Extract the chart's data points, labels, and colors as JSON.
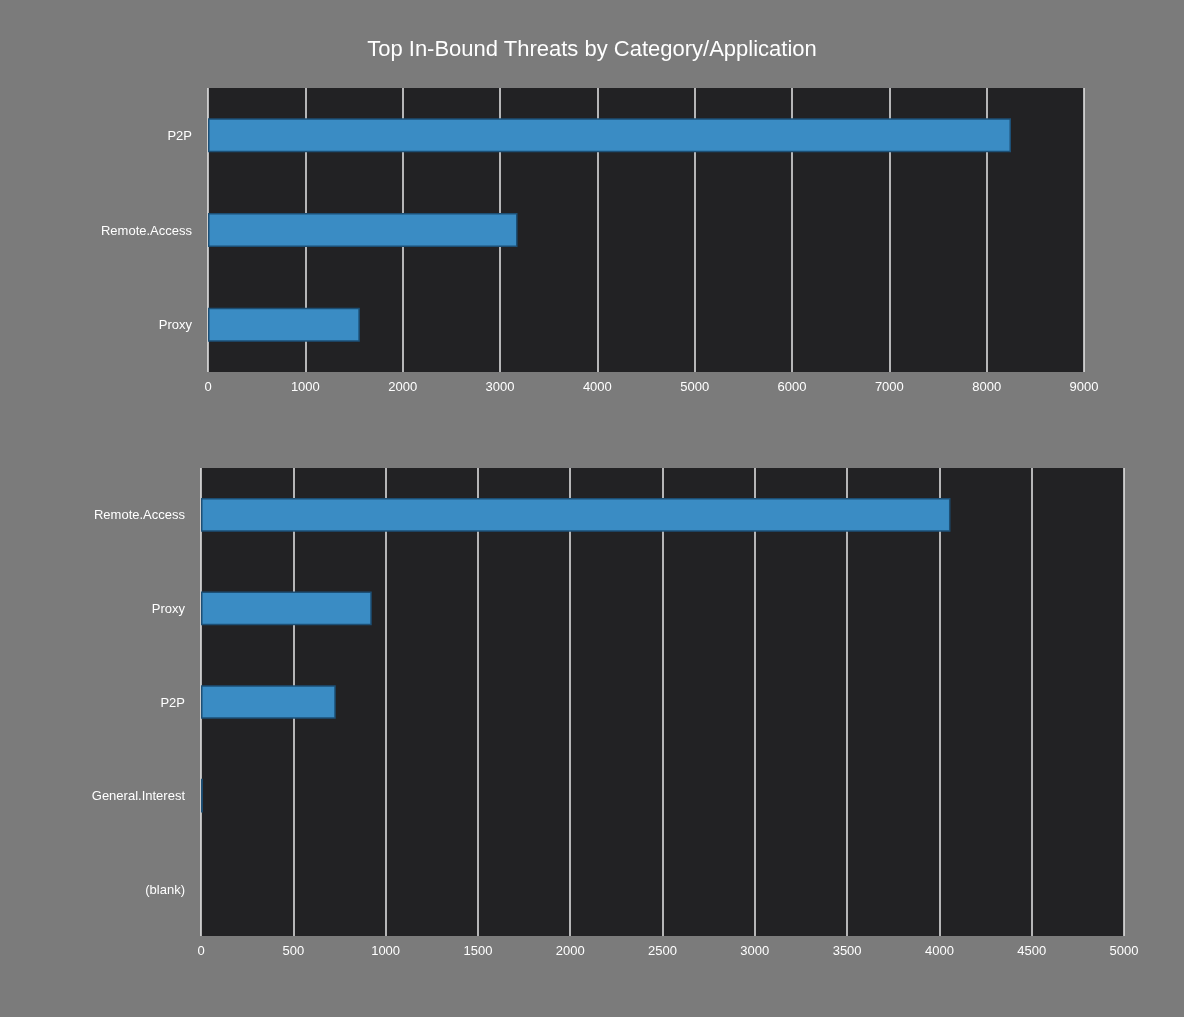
{
  "chart_data": [
    {
      "type": "bar",
      "orientation": "horizontal",
      "title": "Top In-Bound Threats by Category/Application",
      "categories": [
        "P2P",
        "Remote.Access",
        "Proxy"
      ],
      "values": [
        8250,
        3180,
        1560
      ],
      "color": "#3a8cc4",
      "xlim": [
        0,
        9000
      ],
      "xticks": [
        0,
        1000,
        2000,
        3000,
        4000,
        5000,
        6000,
        7000,
        8000,
        9000
      ],
      "grid": "x"
    },
    {
      "type": "bar",
      "orientation": "horizontal",
      "categories": [
        "Remote.Access",
        "Proxy",
        "P2P",
        "General.Interest",
        "(blank)"
      ],
      "values": [
        4060,
        925,
        730,
        10,
        null
      ],
      "color": "#3a8cc4",
      "xlim": [
        0,
        5000
      ],
      "xticks": [
        0,
        500,
        1000,
        1500,
        2000,
        2500,
        3000,
        3500,
        4000,
        4500,
        5000
      ],
      "grid": "x"
    }
  ]
}
